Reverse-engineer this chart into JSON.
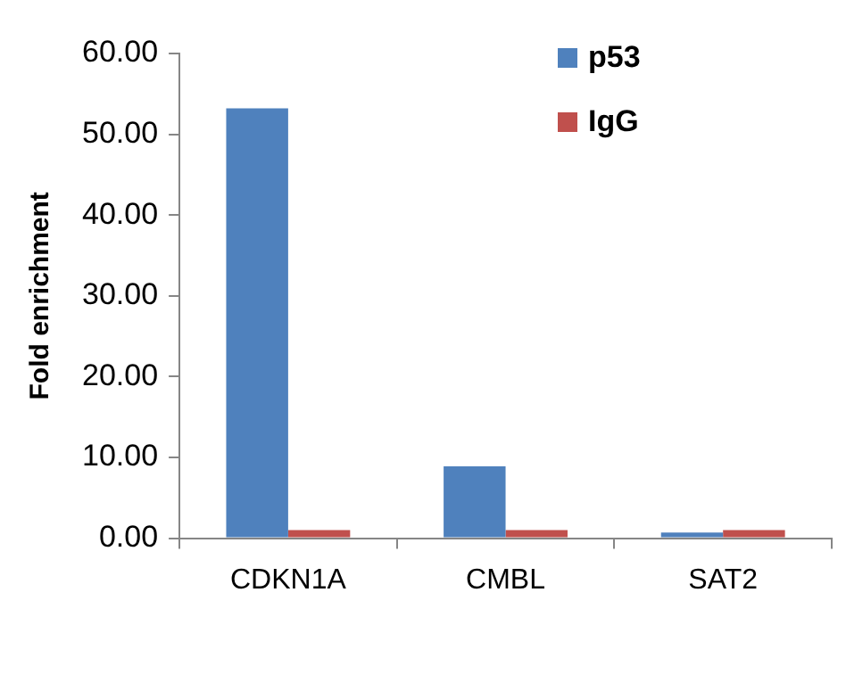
{
  "chart_data": {
    "type": "bar",
    "ylabel": "Fold enrichment",
    "categories": [
      "CDKN1A",
      "CMBL",
      "SAT2"
    ],
    "series": [
      {
        "name": "p53",
        "color": "#4f81bd",
        "values": [
          53.2,
          8.9,
          0.7
        ]
      },
      {
        "name": "IgG",
        "color": "#c0504d",
        "values": [
          1.0,
          1.0,
          1.0
        ]
      }
    ],
    "ylim": [
      0,
      60
    ],
    "yticks": [
      {
        "value": 0,
        "label": "0.00"
      },
      {
        "value": 10,
        "label": "10.00"
      },
      {
        "value": 20,
        "label": "20.00"
      },
      {
        "value": 30,
        "label": "30.00"
      },
      {
        "value": 40,
        "label": "40.00"
      },
      {
        "value": 50,
        "label": "50.00"
      },
      {
        "value": 60,
        "label": "60.00"
      }
    ],
    "grid": false,
    "legend": "top right"
  }
}
